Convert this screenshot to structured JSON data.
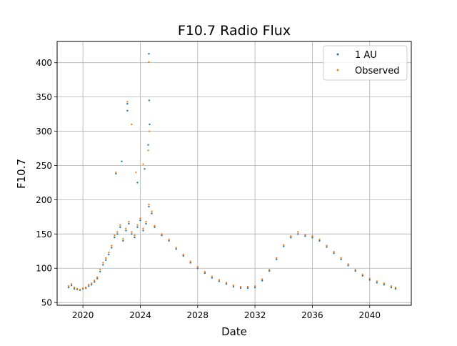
{
  "chart_data": {
    "type": "scatter",
    "title": "F10.7 Radio Flux",
    "xlabel": "Date",
    "ylabel": "F10.7",
    "xlim": [
      2018.2,
      2042.9
    ],
    "ylim": [
      46,
      431
    ],
    "x_ticks": [
      2020,
      2024,
      2028,
      2032,
      2036,
      2040
    ],
    "x_tick_labels": [
      "2020",
      "2024",
      "2028",
      "2032",
      "2036",
      "2040"
    ],
    "y_ticks": [
      50,
      100,
      150,
      200,
      250,
      300,
      350,
      400
    ],
    "y_tick_labels": [
      "50",
      "100",
      "150",
      "200",
      "250",
      "300",
      "350",
      "400"
    ],
    "grid": true,
    "legend_position": "top-right",
    "series": [
      {
        "name": "1 AU",
        "color": "#1f77b4",
        "x": [
          2019.0,
          2019.2,
          2019.4,
          2019.6,
          2019.8,
          2020.0,
          2020.2,
          2020.4,
          2020.6,
          2020.8,
          2021.0,
          2021.2,
          2021.4,
          2021.6,
          2021.8,
          2022.0,
          2022.2,
          2022.4,
          2022.6,
          2022.8,
          2023.0,
          2023.2,
          2023.4,
          2023.6,
          2023.8,
          2024.0,
          2024.2,
          2024.4,
          2024.6,
          2024.8,
          2025.0,
          2025.5,
          2026.0,
          2026.5,
          2027.0,
          2027.5,
          2028.0,
          2028.5,
          2029.0,
          2029.5,
          2030.0,
          2030.5,
          2031.0,
          2031.5,
          2032.0,
          2032.5,
          2033.0,
          2033.5,
          2034.0,
          2034.5,
          2035.0,
          2035.5,
          2036.0,
          2036.5,
          2037.0,
          2037.5,
          2038.0,
          2038.5,
          2039.0,
          2039.5,
          2040.0,
          2040.5,
          2041.0,
          2041.5,
          2041.8,
          2022.3,
          2022.7,
          2023.1,
          2023.1,
          2023.8,
          2024.3,
          2024.55,
          2024.6,
          2024.62,
          2024.65
        ],
        "y": [
          72,
          75,
          70,
          69,
          68,
          70,
          71,
          74,
          76,
          80,
          85,
          95,
          105,
          112,
          120,
          130,
          145,
          150,
          160,
          140,
          155,
          165,
          150,
          145,
          160,
          170,
          155,
          165,
          190,
          180,
          160,
          148,
          140,
          128,
          118,
          108,
          100,
          93,
          86,
          81,
          77,
          73,
          71,
          71,
          72,
          82,
          96,
          113,
          132,
          145,
          150,
          147,
          145,
          140,
          131,
          122,
          113,
          104,
          96,
          89,
          83,
          79,
          76,
          72,
          70,
          238,
          256,
          340,
          330,
          225,
          245,
          280,
          413,
          345,
          310
        ]
      },
      {
        "name": "Observed",
        "color": "#ff7f0e",
        "x": [
          2019.0,
          2019.2,
          2019.4,
          2019.6,
          2019.8,
          2020.0,
          2020.2,
          2020.4,
          2020.6,
          2020.8,
          2021.0,
          2021.2,
          2021.4,
          2021.6,
          2021.8,
          2022.0,
          2022.2,
          2022.4,
          2022.6,
          2022.8,
          2023.0,
          2023.2,
          2023.4,
          2023.6,
          2023.8,
          2024.0,
          2024.2,
          2024.4,
          2024.6,
          2024.8,
          2025.0,
          2025.5,
          2026.0,
          2026.5,
          2027.0,
          2027.5,
          2028.0,
          2028.5,
          2029.0,
          2029.5,
          2030.0,
          2030.5,
          2031.0,
          2031.5,
          2032.0,
          2032.5,
          2033.0,
          2033.5,
          2034.0,
          2034.5,
          2035.0,
          2035.5,
          2036.0,
          2036.5,
          2037.0,
          2037.5,
          2038.0,
          2038.5,
          2039.0,
          2039.5,
          2040.0,
          2040.5,
          2041.0,
          2041.5,
          2041.8,
          2022.3,
          2023.1,
          2023.4,
          2023.7,
          2024.2,
          2024.55,
          2024.6,
          2024.63
        ],
        "y": [
          74,
          77,
          72,
          70,
          69,
          71,
          72,
          76,
          78,
          82,
          87,
          98,
          108,
          115,
          123,
          133,
          148,
          153,
          163,
          143,
          158,
          168,
          153,
          148,
          163,
          173,
          158,
          168,
          193,
          183,
          162,
          150,
          142,
          130,
          120,
          110,
          102,
          95,
          88,
          83,
          79,
          75,
          73,
          73,
          74,
          84,
          98,
          115,
          134,
          147,
          153,
          149,
          147,
          142,
          133,
          124,
          115,
          106,
          98,
          91,
          85,
          81,
          78,
          74,
          72,
          240,
          343,
          310,
          240,
          252,
          272,
          401,
          300
        ]
      }
    ]
  }
}
